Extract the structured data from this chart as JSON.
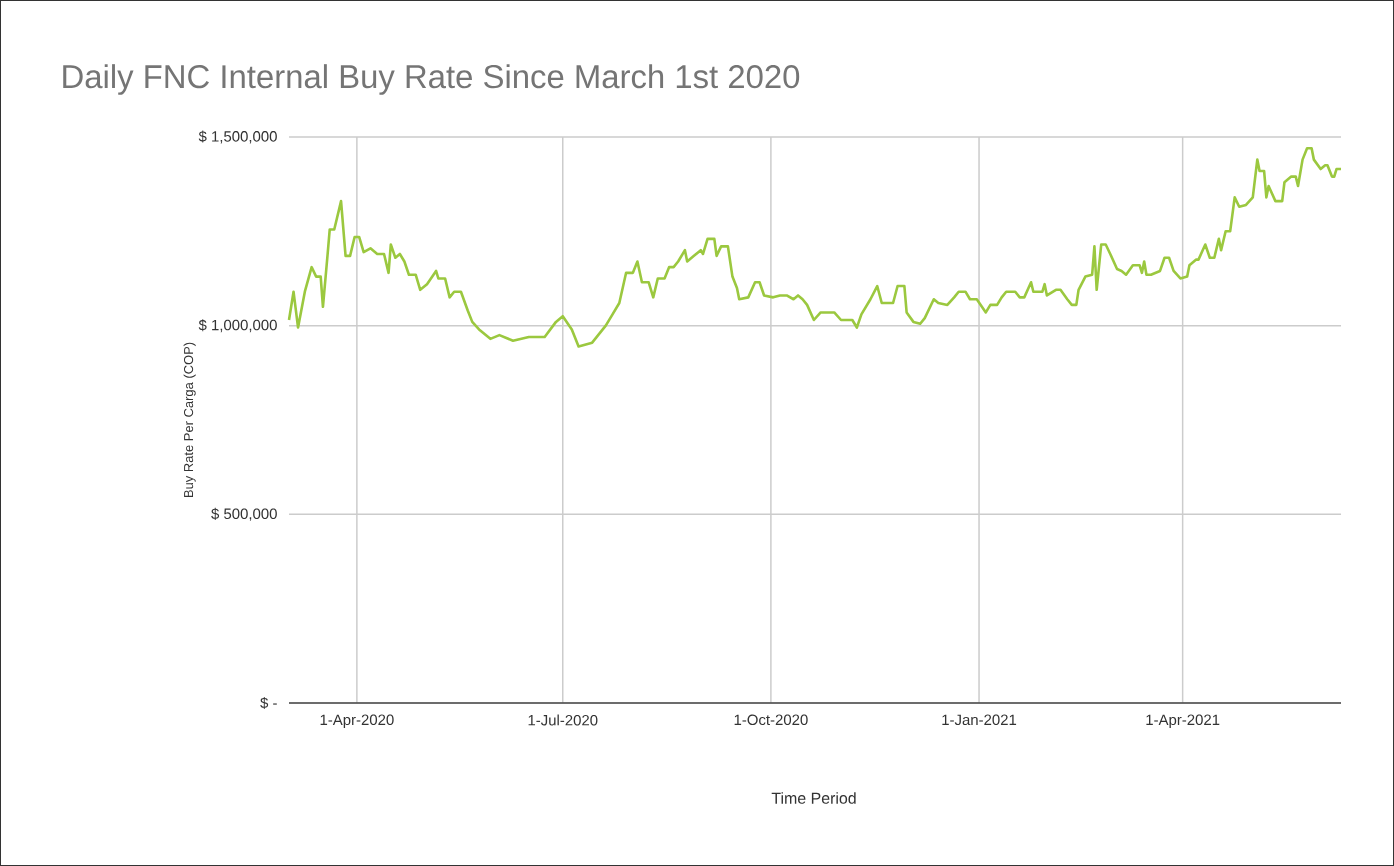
{
  "chart_data": {
    "type": "line",
    "title": "Daily FNC Internal Buy Rate Since March 1st 2020",
    "xlabel": "Time Period",
    "ylabel": "Buy Rate Per Carga (COP)",
    "x": [
      "2020-03-02",
      "2020-03-04",
      "2020-03-06",
      "2020-03-09",
      "2020-03-12",
      "2020-03-14",
      "2020-03-16",
      "2020-03-17",
      "2020-03-19",
      "2020-03-20",
      "2020-03-22",
      "2020-03-25",
      "2020-03-27",
      "2020-03-29",
      "2020-03-31",
      "2020-04-02",
      "2020-04-04",
      "2020-04-07",
      "2020-04-10",
      "2020-04-13",
      "2020-04-15",
      "2020-04-16",
      "2020-04-18",
      "2020-04-20",
      "2020-04-22",
      "2020-04-24",
      "2020-04-27",
      "2020-04-29",
      "2020-05-02",
      "2020-05-06",
      "2020-05-07",
      "2020-05-10",
      "2020-05-12",
      "2020-05-14",
      "2020-05-17",
      "2020-05-20",
      "2020-05-22",
      "2020-05-25",
      "2020-05-30",
      "2020-06-03",
      "2020-06-09",
      "2020-06-16",
      "2020-06-23",
      "2020-06-28",
      "2020-07-01",
      "2020-07-05",
      "2020-07-08",
      "2020-07-14",
      "2020-07-20",
      "2020-07-23",
      "2020-07-26",
      "2020-07-29",
      "2020-08-01",
      "2020-08-03",
      "2020-08-05",
      "2020-08-08",
      "2020-08-10",
      "2020-08-12",
      "2020-08-15",
      "2020-08-17",
      "2020-08-19",
      "2020-08-21",
      "2020-08-24",
      "2020-08-25",
      "2020-08-28",
      "2020-08-31",
      "2020-09-01",
      "2020-09-03",
      "2020-09-06",
      "2020-09-07",
      "2020-09-09",
      "2020-09-12",
      "2020-09-14",
      "2020-09-16",
      "2020-09-17",
      "2020-09-21",
      "2020-09-24",
      "2020-09-26",
      "2020-09-28",
      "2020-10-02",
      "2020-10-05",
      "2020-10-08",
      "2020-10-11",
      "2020-10-13",
      "2020-10-15",
      "2020-10-17",
      "2020-10-20",
      "2020-10-23",
      "2020-10-26",
      "2020-10-29",
      "2020-11-01",
      "2020-11-04",
      "2020-11-06",
      "2020-11-08",
      "2020-11-10",
      "2020-11-14",
      "2020-11-17",
      "2020-11-19",
      "2020-11-24",
      "2020-11-26",
      "2020-11-29",
      "2020-11-30",
      "2020-12-03",
      "2020-12-06",
      "2020-12-08",
      "2020-12-12",
      "2020-12-14",
      "2020-12-18",
      "2020-12-21",
      "2020-12-23",
      "2020-12-26",
      "2020-12-28",
      "2020-12-31",
      "2021-01-04",
      "2021-01-06",
      "2021-01-09",
      "2021-01-11",
      "2021-01-13",
      "2021-01-17",
      "2021-01-19",
      "2021-01-21",
      "2021-01-24",
      "2021-01-25",
      "2021-01-29",
      "2021-01-30",
      "2021-01-31",
      "2021-02-04",
      "2021-02-06",
      "2021-02-09",
      "2021-02-11",
      "2021-02-13",
      "2021-02-14",
      "2021-02-17",
      "2021-02-20",
      "2021-02-21",
      "2021-02-22",
      "2021-02-24",
      "2021-02-26",
      "2021-02-28",
      "2021-03-03",
      "2021-03-05",
      "2021-03-07",
      "2021-03-10",
      "2021-03-13",
      "2021-03-14",
      "2021-03-15",
      "2021-03-16",
      "2021-03-18",
      "2021-03-22",
      "2021-03-24",
      "2021-03-26",
      "2021-03-28",
      "2021-03-31",
      "2021-04-03",
      "2021-04-04",
      "2021-04-07",
      "2021-04-08",
      "2021-04-11",
      "2021-04-13",
      "2021-04-15",
      "2021-04-17",
      "2021-04-18",
      "2021-04-20",
      "2021-04-22",
      "2021-04-24",
      "2021-04-26",
      "2021-04-29",
      "2021-05-02",
      "2021-05-04",
      "2021-05-05",
      "2021-05-07",
      "2021-05-08",
      "2021-05-09",
      "2021-05-12",
      "2021-05-15",
      "2021-05-16",
      "2021-05-19",
      "2021-05-21",
      "2021-05-22",
      "2021-05-24",
      "2021-05-26",
      "2021-05-28",
      "2021-05-29",
      "2021-06-01",
      "2021-06-03",
      "2021-06-04",
      "2021-06-06",
      "2021-06-07",
      "2021-06-08",
      "2021-06-10"
    ],
    "series": [
      {
        "color": "#9bc83f",
        "values": [
          1015000,
          1090000,
          995000,
          1090000,
          1155000,
          1130000,
          1130000,
          1050000,
          1185000,
          1255000,
          1255000,
          1330000,
          1185000,
          1185000,
          1235000,
          1235000,
          1195000,
          1205000,
          1190000,
          1190000,
          1140000,
          1215000,
          1180000,
          1190000,
          1170000,
          1135000,
          1135000,
          1095000,
          1110000,
          1145000,
          1125000,
          1125000,
          1075000,
          1090000,
          1090000,
          1040000,
          1010000,
          990000,
          965000,
          975000,
          960000,
          970000,
          970000,
          1010000,
          1025000,
          990000,
          945000,
          955000,
          1000000,
          1030000,
          1060000,
          1140000,
          1140000,
          1170000,
          1115000,
          1115000,
          1075000,
          1125000,
          1125000,
          1155000,
          1155000,
          1170000,
          1200000,
          1170000,
          1185000,
          1200000,
          1190000,
          1230000,
          1230000,
          1185000,
          1210000,
          1210000,
          1130000,
          1100000,
          1070000,
          1075000,
          1115000,
          1115000,
          1080000,
          1075000,
          1080000,
          1080000,
          1070000,
          1080000,
          1070000,
          1055000,
          1015000,
          1035000,
          1035000,
          1035000,
          1015000,
          1015000,
          1015000,
          995000,
          1030000,
          1070000,
          1105000,
          1060000,
          1060000,
          1105000,
          1105000,
          1035000,
          1010000,
          1005000,
          1020000,
          1070000,
          1060000,
          1055000,
          1075000,
          1090000,
          1090000,
          1070000,
          1070000,
          1035000,
          1055000,
          1055000,
          1075000,
          1090000,
          1090000,
          1075000,
          1075000,
          1115000,
          1090000,
          1090000,
          1110000,
          1080000,
          1095000,
          1095000,
          1070000,
          1055000,
          1055000,
          1095000,
          1130000,
          1135000,
          1210000,
          1095000,
          1215000,
          1215000,
          1190000,
          1150000,
          1145000,
          1135000,
          1160000,
          1160000,
          1140000,
          1170000,
          1135000,
          1135000,
          1145000,
          1180000,
          1180000,
          1145000,
          1125000,
          1130000,
          1160000,
          1175000,
          1175000,
          1215000,
          1180000,
          1180000,
          1230000,
          1200000,
          1250000,
          1250000,
          1340000,
          1315000,
          1320000,
          1340000,
          1440000,
          1410000,
          1410000,
          1340000,
          1370000,
          1330000,
          1330000,
          1380000,
          1395000,
          1395000,
          1370000,
          1440000,
          1470000,
          1470000,
          1440000,
          1415000,
          1425000,
          1425000,
          1395000,
          1395000,
          1415000,
          1415000
        ]
      }
    ],
    "xlim": [
      "2020-03-02",
      "2021-06-10"
    ],
    "xticks": [
      {
        "value": "2020-04-01",
        "label": "1-Apr-2020"
      },
      {
        "value": "2020-07-01",
        "label": "1-Jul-2020"
      },
      {
        "value": "2020-10-01",
        "label": "1-Oct-2020"
      },
      {
        "value": "2021-01-01",
        "label": "1-Jan-2021"
      },
      {
        "value": "2021-04-01",
        "label": "1-Apr-2021"
      }
    ],
    "ylim": [
      0,
      1500000
    ],
    "yticks": [
      {
        "value": 0,
        "label": "$ -"
      },
      {
        "value": 500000,
        "label": "$ 500,000"
      },
      {
        "value": 1000000,
        "label": "$ 1,000,000"
      },
      {
        "value": 1500000,
        "label": "$ 1,500,000"
      }
    ],
    "grid": true
  }
}
